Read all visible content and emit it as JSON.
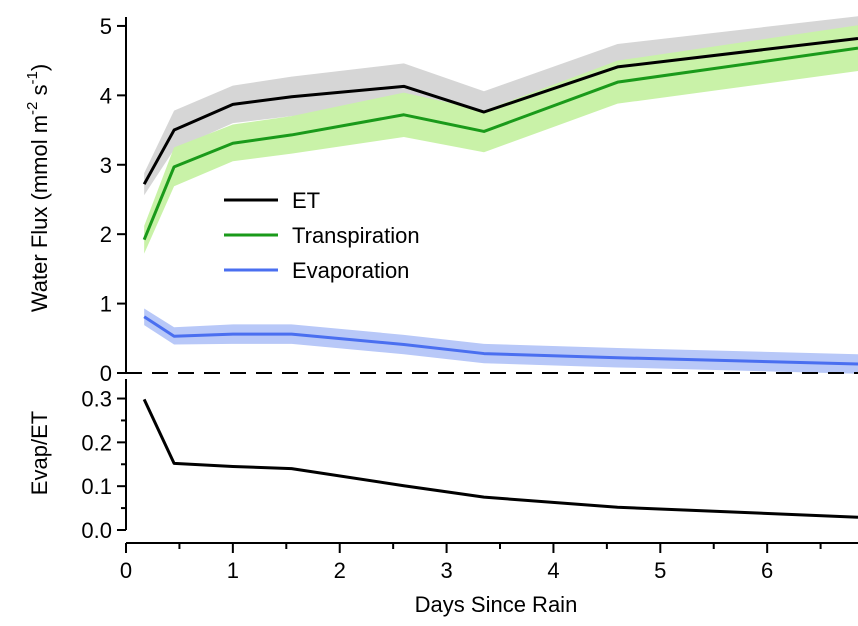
{
  "colors": {
    "et": "#000000",
    "et_band": "#d6d6d6",
    "transpiration": "#1a9a1a",
    "transpiration_band": "#c9f2a8",
    "evaporation": "#4a6ff0",
    "evaporation_band": "#b8c8f8"
  },
  "chart_data": [
    {
      "type": "line",
      "ylabel": "Water Flux (mmol m",
      "ylabel_sup1": "-2",
      "ylabel_mid": " s",
      "ylabel_sup2": "-1",
      "ylabel_end": ")",
      "xlim": [
        0,
        6.85
      ],
      "ylim": [
        0,
        5.1
      ],
      "yticks": [
        "0",
        "1",
        "2",
        "3",
        "4",
        "5"
      ],
      "legend": "upper-left-inside",
      "reference_line": {
        "y": 0,
        "style": "dashed"
      },
      "x": [
        0.17,
        0.45,
        1.0,
        1.55,
        2.6,
        3.35,
        4.6,
        6.85
      ],
      "series": [
        {
          "name": "ET",
          "values": [
            2.72,
            3.5,
            3.87,
            3.98,
            4.13,
            3.76,
            4.41,
            4.82
          ],
          "band_upper": [
            2.88,
            3.78,
            4.14,
            4.27,
            4.46,
            4.06,
            4.74,
            5.14
          ],
          "band_lower": [
            2.56,
            3.22,
            3.6,
            3.7,
            3.8,
            3.46,
            4.08,
            4.5
          ]
        },
        {
          "name": "Transpiration",
          "values": [
            1.92,
            2.97,
            3.31,
            3.43,
            3.72,
            3.48,
            4.19,
            4.68
          ],
          "band_upper": [
            2.12,
            3.25,
            3.58,
            3.7,
            4.04,
            3.78,
            4.5,
            5.01
          ],
          "band_lower": [
            1.72,
            2.69,
            3.05,
            3.16,
            3.4,
            3.18,
            3.88,
            4.35
          ]
        },
        {
          "name": "Evaporation",
          "values": [
            0.81,
            0.53,
            0.56,
            0.56,
            0.41,
            0.28,
            0.22,
            0.13
          ],
          "band_upper": [
            0.93,
            0.66,
            0.7,
            0.7,
            0.55,
            0.42,
            0.36,
            0.27
          ],
          "band_lower": [
            0.69,
            0.41,
            0.42,
            0.42,
            0.27,
            0.14,
            0.08,
            -0.01
          ]
        }
      ]
    },
    {
      "type": "line",
      "ylabel": "Evap/ET",
      "xlabel": "Days Since Rain",
      "xlim": [
        0,
        6.85
      ],
      "ylim": [
        0,
        0.34
      ],
      "xticks": [
        "0",
        "1",
        "2",
        "3",
        "4",
        "5",
        "6"
      ],
      "yticks": [
        "0.0",
        "0.1",
        "0.2",
        "0.3"
      ],
      "x": [
        0.17,
        0.45,
        1.0,
        1.55,
        2.6,
        3.35,
        4.6,
        6.85
      ],
      "series": [
        {
          "values": [
            0.298,
            0.152,
            0.145,
            0.14,
            0.101,
            0.075,
            0.052,
            0.029
          ]
        }
      ]
    }
  ]
}
